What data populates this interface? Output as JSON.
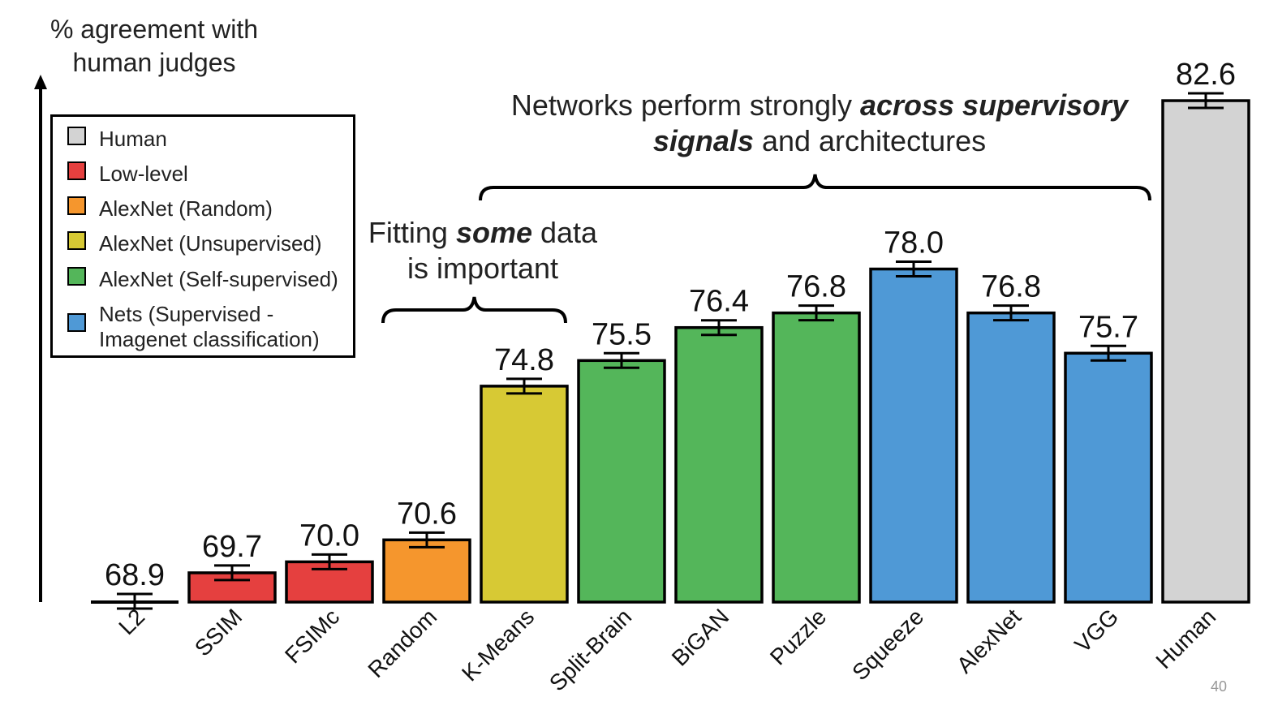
{
  "chart_data": {
    "type": "bar",
    "ylabel": "% agreement with human judges",
    "categories": [
      "L2",
      "SSIM",
      "FSIMc",
      "Random",
      "K-Means",
      "Split-Brain",
      "BiGAN",
      "Puzzle",
      "Squeeze",
      "AlexNet",
      "VGG",
      "Human"
    ],
    "values": [
      68.9,
      69.7,
      70.0,
      70.6,
      74.8,
      75.5,
      76.4,
      76.8,
      78.0,
      76.8,
      75.7,
      82.6
    ],
    "value_labels": [
      "68.9",
      "69.7",
      "70.0",
      "70.6",
      "74.8",
      "75.5",
      "76.4",
      "76.8",
      "78.0",
      "76.8",
      "75.7",
      "82.6"
    ],
    "groups": [
      "Low-level",
      "Low-level",
      "Low-level",
      "AlexNet (Random)",
      "AlexNet (Unsupervised)",
      "AlexNet (Self-supervised)",
      "AlexNet (Self-supervised)",
      "AlexNet (Self-supervised)",
      "Nets (Supervised - Imagenet classification)",
      "Nets (Supervised - Imagenet classification)",
      "Nets (Supervised - Imagenet classification)",
      "Human"
    ],
    "error_bars": true,
    "ylim": [
      68.9,
      83.0
    ],
    "legend": {
      "position": "top-left",
      "entries": [
        {
          "label": "Human",
          "color": "#d3d3d3"
        },
        {
          "label": "Low-level",
          "color": "#e5403f"
        },
        {
          "label": "AlexNet (Random)",
          "color": "#f5962d"
        },
        {
          "label": "AlexNet (Unsupervised)",
          "color": "#d7c934"
        },
        {
          "label": "AlexNet (Self-supervised)",
          "color": "#54b65a"
        },
        {
          "label": "Nets (Supervised -\nImagenet classification)",
          "color": "#4f99d6"
        }
      ]
    }
  },
  "annotations": {
    "networks_pre": "Networks perform strongly ",
    "networks_em1": "across supervisory",
    "networks_em2": "signals",
    "networks_post": " and architectures",
    "fitting_pre": "Fitting ",
    "fitting_em": "some",
    "fitting_post": " data",
    "fitting_line2": "is important"
  },
  "page_number": "40"
}
